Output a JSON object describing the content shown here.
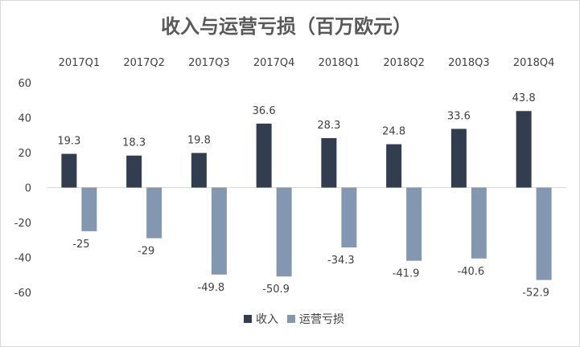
{
  "chart_data": {
    "type": "bar",
    "title": "收入与运营亏损（百万欧元）",
    "categories": [
      "2017Q1",
      "2017Q2",
      "2017Q3",
      "2017Q4",
      "2018Q1",
      "2018Q2",
      "2018Q3",
      "2018Q4"
    ],
    "series": [
      {
        "name": "收入",
        "color": "#323d4f",
        "values": [
          19.3,
          18.3,
          19.8,
          36.6,
          28.3,
          24.8,
          33.6,
          43.8
        ]
      },
      {
        "name": "运营亏损",
        "color": "#8497b0",
        "values": [
          -25,
          -29,
          -49.8,
          -50.9,
          -34.3,
          -41.9,
          -40.6,
          -52.9
        ]
      }
    ],
    "ylim": [
      -60,
      60
    ],
    "yticks": [
      60,
      40,
      20,
      0,
      -20,
      -40,
      -60
    ],
    "grid": false,
    "legend": "bottom",
    "category_labels_position": "top"
  }
}
